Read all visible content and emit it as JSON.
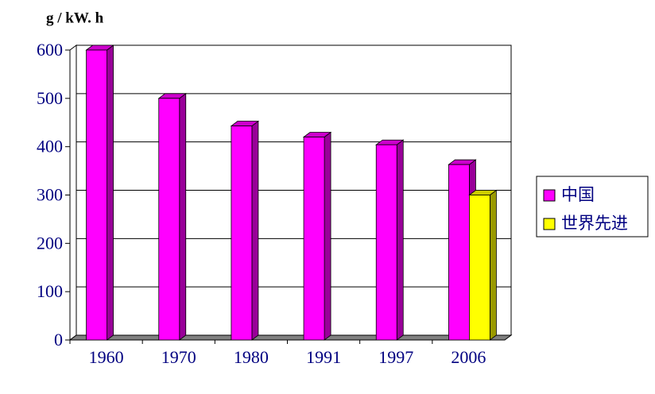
{
  "chart_data": {
    "type": "bar3d",
    "y_label": "g / kW. h",
    "categories": [
      "1960",
      "1970",
      "1980",
      "1991",
      "1997",
      "2006"
    ],
    "series": [
      {
        "name": "中国",
        "color": "#ff00ff",
        "values": [
          600,
          500,
          443,
          420,
          404,
          363
        ]
      },
      {
        "name": "世界先进",
        "color": "#ffff00",
        "values": [
          null,
          null,
          null,
          null,
          null,
          300
        ]
      }
    ],
    "ylim": [
      0,
      600
    ],
    "yticks": [
      0,
      100,
      200,
      300,
      400,
      500,
      600
    ],
    "grid": true,
    "legend": "right"
  }
}
